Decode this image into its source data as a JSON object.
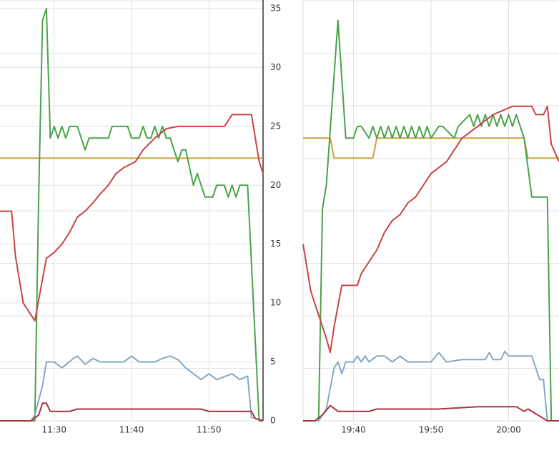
{
  "chart_data": [
    {
      "type": "line",
      "xlim": [
        "11:23",
        "11:57"
      ],
      "xticks": [
        "11:30",
        "11:40",
        "11:50"
      ],
      "ylim": [
        0,
        35
      ],
      "yticks": [
        0,
        5,
        10,
        15,
        20,
        25,
        30,
        35
      ],
      "series": [
        {
          "color": "#c8a13a",
          "x": [
            "11:23",
            "11:57"
          ],
          "values": [
            22.3,
            22.3
          ]
        },
        {
          "color": "#4aa34a",
          "x": [
            "11:23",
            "11:27:30",
            "11:28",
            "11:28:30",
            "11:29",
            "11:29:30",
            "11:30",
            "11:30:30",
            "11:31",
            "11:31:30",
            "11:32",
            "11:33",
            "11:34",
            "11:34:30",
            "11:37",
            "11:37:30",
            "11:39:30",
            "11:40",
            "11:41",
            "11:41:30",
            "11:42",
            "11:42:30",
            "11:43",
            "11:43:30",
            "11:44",
            "11:44:30",
            "11:45",
            "11:46",
            "11:46:30",
            "11:47",
            "11:48",
            "11:48:30",
            "11:49",
            "11:49:30",
            "11:50:30",
            "11:51",
            "11:52",
            "11:52:30",
            "11:53",
            "11:53:30",
            "11:54",
            "11:55",
            "11:56:30",
            "11:57"
          ],
          "values": [
            0,
            0,
            19,
            34,
            35,
            24,
            25,
            24,
            25,
            24,
            25,
            25,
            23,
            24,
            24,
            25,
            25,
            24,
            24,
            25,
            24,
            24,
            25,
            24,
            25,
            24,
            24,
            22,
            23,
            23,
            20,
            21,
            20,
            19,
            19,
            20,
            20,
            19,
            20,
            19,
            20,
            20,
            0,
            0
          ]
        },
        {
          "color": "#c94444",
          "x": [
            "11:23",
            "11:24:30",
            "11:25",
            "11:26",
            "11:27:30",
            "11:29",
            "11:30",
            "11:31",
            "11:32",
            "11:33",
            "11:34",
            "11:35",
            "11:36",
            "11:37",
            "11:38",
            "11:39",
            "11:40:30",
            "11:41:30",
            "11:43",
            "11:44:30",
            "11:46",
            "11:49",
            "11:52",
            "11:53",
            "11:55:30",
            "11:56:30",
            "11:57"
          ],
          "values": [
            17.8,
            17.8,
            14,
            10,
            8.5,
            13.8,
            14.3,
            15,
            16,
            17.3,
            17.8,
            18.5,
            19.3,
            20,
            21,
            21.5,
            22,
            23,
            24,
            24.8,
            25,
            25,
            25,
            26,
            26,
            22,
            21
          ]
        },
        {
          "color": "#85a8c4",
          "x": [
            "11:23",
            "11:27",
            "11:27:30",
            "11:28:30",
            "11:29",
            "11:30",
            "11:31",
            "11:32:30",
            "11:33",
            "11:34",
            "11:35",
            "11:36",
            "11:39",
            "11:40",
            "11:41",
            "11:43",
            "11:44",
            "11:45",
            "11:46",
            "11:47",
            "11:48",
            "11:49",
            "11:50",
            "11:51",
            "11:53",
            "11:54",
            "11:55",
            "11:55:30",
            "11:57"
          ],
          "values": [
            0,
            0,
            0.5,
            3,
            5,
            5,
            4.5,
            5.3,
            5.5,
            4.8,
            5.3,
            5,
            5,
            5.5,
            5,
            5,
            5.3,
            5.5,
            5.2,
            4.5,
            4,
            3.5,
            4,
            3.5,
            4,
            3.5,
            3.8,
            0.3,
            0
          ]
        },
        {
          "color": "#a8343c",
          "x": [
            "11:23",
            "11:27",
            "11:28",
            "11:28:30",
            "11:29",
            "11:29:30",
            "11:32",
            "11:33",
            "11:49",
            "11:50",
            "11:55:30",
            "11:56",
            "11:57"
          ],
          "values": [
            0,
            0,
            0.5,
            1.5,
            1.5,
            0.8,
            0.8,
            1,
            1,
            0.8,
            0.8,
            0.2,
            0
          ]
        }
      ]
    },
    {
      "type": "line",
      "xlim": [
        "19:33:30",
        "20:06:30"
      ],
      "xticks": [
        "19:40",
        "19:50",
        "20:00"
      ],
      "ylim": [
        0,
        35
      ],
      "series": [
        {
          "color": "#c8a13a",
          "x": [
            "19:33:30",
            "19:37",
            "19:37:30",
            "19:42:30",
            "19:43",
            "20:02",
            "20:02:30",
            "20:06:30"
          ],
          "values": [
            24,
            24,
            22.3,
            22.3,
            24,
            24,
            22.3,
            22.3
          ]
        },
        {
          "color": "#4aa34a",
          "x": [
            "19:33:30",
            "19:35:30",
            "19:36",
            "19:36:30",
            "19:38",
            "19:39",
            "19:40",
            "19:40:30",
            "19:41",
            "19:42",
            "19:42:30",
            "19:43",
            "19:43:30",
            "19:44",
            "19:44:30",
            "19:45",
            "19:45:30",
            "19:46",
            "19:46:30",
            "19:47",
            "19:47:30",
            "19:48",
            "19:48:30",
            "19:49",
            "19:49:30",
            "19:50",
            "19:51",
            "19:51:30",
            "19:53",
            "19:53:30",
            "19:55",
            "19:55:30",
            "19:56",
            "19:56:30",
            "19:57",
            "19:57:30",
            "19:58",
            "19:58:30",
            "19:59",
            "19:59:30",
            "20:00",
            "20:00:30",
            "20:01",
            "20:02",
            "20:03",
            "20:05",
            "20:05:30",
            "20:06:30"
          ],
          "values": [
            0,
            0,
            18,
            20,
            34,
            24,
            24,
            25,
            25,
            24,
            25,
            24,
            25,
            24,
            25,
            24,
            25,
            24,
            25,
            24,
            25,
            24,
            25,
            24,
            25,
            24,
            25,
            25,
            24,
            25,
            26,
            25,
            26,
            25,
            26,
            25,
            26,
            25,
            26,
            25,
            26,
            25,
            26,
            24,
            19,
            19,
            0,
            0
          ]
        },
        {
          "color": "#c94444",
          "x": [
            "19:33:30",
            "19:34",
            "19:34:30",
            "19:35:30",
            "19:36:30",
            "19:37",
            "19:37:30",
            "19:38:30",
            "19:40:30",
            "19:41",
            "19:42",
            "19:43",
            "19:44",
            "19:45",
            "19:46",
            "19:47",
            "19:48",
            "19:49",
            "19:50",
            "19:52",
            "19:53",
            "19:54",
            "19:56",
            "19:58",
            "20:00:30",
            "20:03",
            "20:03:30",
            "20:04:30",
            "20:05",
            "20:05:30",
            "20:06:30"
          ],
          "values": [
            15,
            13,
            11,
            9,
            7,
            5.8,
            8,
            11.5,
            11.5,
            12.5,
            13.5,
            14.5,
            16,
            17,
            17.5,
            18.5,
            19,
            20,
            21,
            22,
            23,
            24,
            25,
            26,
            26.7,
            26.7,
            26,
            26,
            26.7,
            23.5,
            22
          ]
        },
        {
          "color": "#85a8c4",
          "x": [
            "19:33:30",
            "19:35:30",
            "19:36:30",
            "19:37:30",
            "19:38",
            "19:38:30",
            "19:39",
            "19:40",
            "19:40:30",
            "19:41",
            "19:41:30",
            "19:42",
            "19:43",
            "19:44",
            "19:45",
            "19:46",
            "19:47",
            "19:50",
            "19:51",
            "19:52",
            "19:54",
            "19:57",
            "19:57:30",
            "19:58",
            "19:59",
            "19:59:30",
            "20:00",
            "20:03",
            "20:03:30",
            "20:04",
            "20:04:30",
            "20:05",
            "20:06:30"
          ],
          "values": [
            0,
            0,
            1,
            4.5,
            5,
            4,
            5,
            5,
            5.5,
            5,
            5.5,
            5,
            5.5,
            5.5,
            5,
            5.5,
            5,
            5,
            5.8,
            5,
            5.2,
            5.2,
            5.8,
            5.2,
            5.2,
            5.9,
            5.5,
            5.5,
            4.5,
            3.5,
            3.5,
            0,
            0
          ]
        },
        {
          "color": "#a8343c",
          "x": [
            "19:33:30",
            "19:35",
            "19:36",
            "19:37",
            "19:38",
            "19:42",
            "19:43",
            "19:51",
            "19:56",
            "20:01",
            "20:02",
            "20:02:30",
            "20:04:30",
            "20:05",
            "20:06:30"
          ],
          "values": [
            0,
            0,
            0.5,
            1.3,
            0.8,
            0.8,
            1,
            1,
            1.2,
            1.2,
            0.8,
            1,
            0.2,
            0,
            0
          ]
        }
      ]
    }
  ]
}
